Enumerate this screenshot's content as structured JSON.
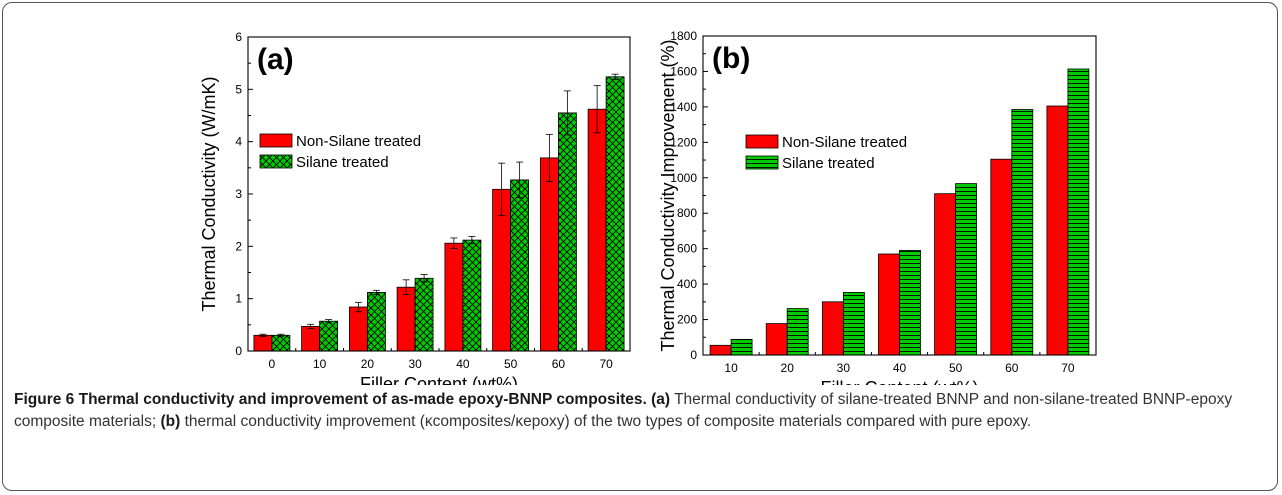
{
  "figure": {
    "caption_label": "Figure 6",
    "caption_title": "Thermal conductivity and improvement of as-made epoxy-BNNP composites.",
    "caption_a_tag": "(a)",
    "caption_a_text": "Thermal conductivity of silane-treated BNNP and non-silane-treated BNNP-epoxy composite materials;",
    "caption_b_tag": "(b)",
    "caption_b_text": "thermal conductivity improvement (κcomposites/κepoxy) of the two types of composite materials compared with pure epoxy."
  },
  "colors": {
    "non_silane": "#ff0000",
    "silane": "#00cc00",
    "axis": "#000000"
  },
  "chart_data": [
    {
      "type": "bar",
      "panel_label": "(a)",
      "xlabel": "Filler Content (wt%)",
      "ylabel": "Thermal Conductivity (W/mK)",
      "ylim": [
        0,
        6
      ],
      "yticks": [
        0,
        1,
        2,
        3,
        4,
        5,
        6
      ],
      "categories": [
        "0",
        "10",
        "20",
        "30",
        "40",
        "50",
        "60",
        "70"
      ],
      "legend_position": "upper-left",
      "series": [
        {
          "name": "Non-Silane treated",
          "pattern": "solid",
          "values": [
            0.3,
            0.47,
            0.84,
            1.22,
            2.06,
            3.09,
            3.69,
            4.62
          ],
          "errors": [
            0.02,
            0.04,
            0.09,
            0.14,
            0.1,
            0.5,
            0.45,
            0.45
          ]
        },
        {
          "name": "Silane treated",
          "pattern": "crosshatch",
          "values": [
            0.3,
            0.57,
            1.12,
            1.39,
            2.12,
            3.27,
            4.55,
            5.24
          ],
          "errors": [
            0.02,
            0.03,
            0.04,
            0.07,
            0.07,
            0.34,
            0.42,
            0.05
          ]
        }
      ]
    },
    {
      "type": "bar",
      "panel_label": "(b)",
      "xlabel": "Filler Content (wt%)",
      "ylabel": "Thermal Conductivity Improvement (%)",
      "ylim": [
        0,
        1800
      ],
      "yticks": [
        0,
        200,
        400,
        600,
        800,
        1000,
        1200,
        1400,
        1600,
        1800
      ],
      "categories": [
        "10",
        "20",
        "30",
        "40",
        "50",
        "60",
        "70"
      ],
      "legend_position": "left",
      "series": [
        {
          "name": "Non-Silane treated",
          "pattern": "solid",
          "values": [
            55,
            177,
            300,
            570,
            910,
            1105,
            1405
          ]
        },
        {
          "name": "Silane treated",
          "pattern": "horizontal-lines",
          "values": [
            88,
            262,
            353,
            590,
            967,
            1385,
            1614
          ]
        }
      ]
    }
  ]
}
